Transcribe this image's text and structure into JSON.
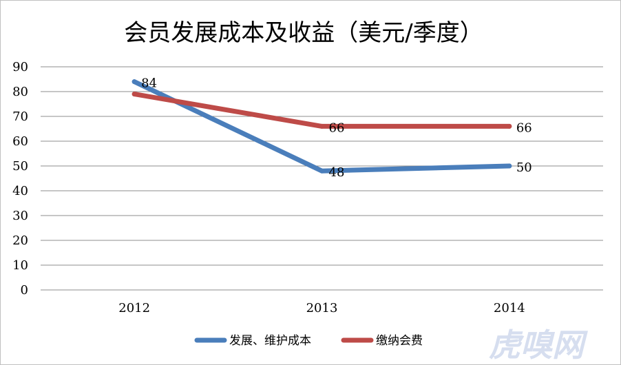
{
  "chart_data": {
    "type": "line",
    "title": "会员发展成本及收益（美元/季度）",
    "categories": [
      "2012",
      "2013",
      "2014"
    ],
    "ylim": [
      0,
      90
    ],
    "yticks": [
      "0",
      "10",
      "20",
      "30",
      "40",
      "50",
      "60",
      "70",
      "80",
      "90"
    ],
    "grid": true,
    "legend_position": "bottom",
    "series": [
      {
        "name": "发展、维护成本",
        "values": [
          84,
          48,
          50
        ],
        "labels": [
          "84",
          "48",
          "50"
        ],
        "color": "#4a7ebb"
      },
      {
        "name": "缴纳会费",
        "values": [
          79,
          66,
          66
        ],
        "labels": [
          "",
          "66",
          "66"
        ],
        "color": "#be4b48"
      }
    ]
  },
  "watermark": "虎嗅网"
}
